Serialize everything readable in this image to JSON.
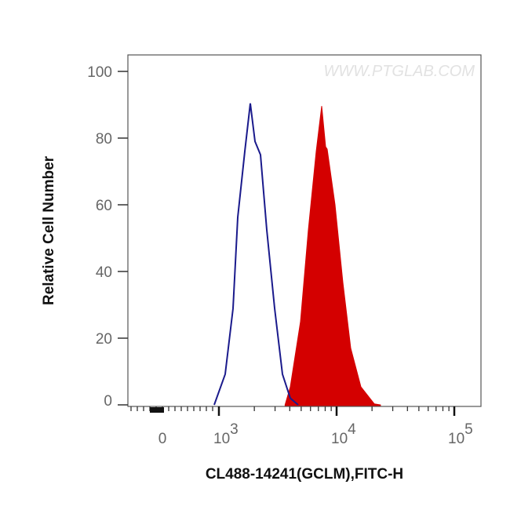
{
  "chart_data": {
    "type": "area",
    "title": "",
    "xlabel": "CL488-14241(GCLM),FITC-H",
    "ylabel": "Relative Cell Number",
    "x_scale": "biexponential (log above 10^3)",
    "xlim": [
      0,
      100000
    ],
    "ylim": [
      0,
      100
    ],
    "y_ticks": [
      "0",
      "20",
      "40",
      "60",
      "80",
      "100"
    ],
    "x_ticks": [
      {
        "base": "0",
        "exp": ""
      },
      {
        "base": "10",
        "exp": "3"
      },
      {
        "base": "10",
        "exp": "4"
      },
      {
        "base": "10",
        "exp": "5"
      }
    ],
    "grid": false,
    "watermark": "WWW.PTGLAB.COM",
    "series": [
      {
        "style": "outline",
        "color": "#1a1a8c",
        "x": [
          912,
          1130,
          1318,
          1445,
          1660,
          1849,
          2027,
          2256,
          2551,
          2974,
          3467,
          4044,
          4712
        ],
        "y": [
          0,
          9.2,
          28.9,
          56.2,
          76,
          90.4,
          79,
          75,
          52.5,
          29,
          9.2,
          2,
          0
        ]
      },
      {
        "style": "filled",
        "color": "#d40000",
        "x": [
          3650,
          4044,
          4937,
          5754,
          6714,
          7470,
          8066,
          8318,
          9705,
          11298,
          13183,
          16106,
          20900,
          23600
        ],
        "y": [
          0,
          5.4,
          25,
          52.5,
          76,
          89.6,
          77.4,
          76.7,
          60,
          36.7,
          17,
          5.4,
          0.3,
          0
        ]
      }
    ]
  }
}
